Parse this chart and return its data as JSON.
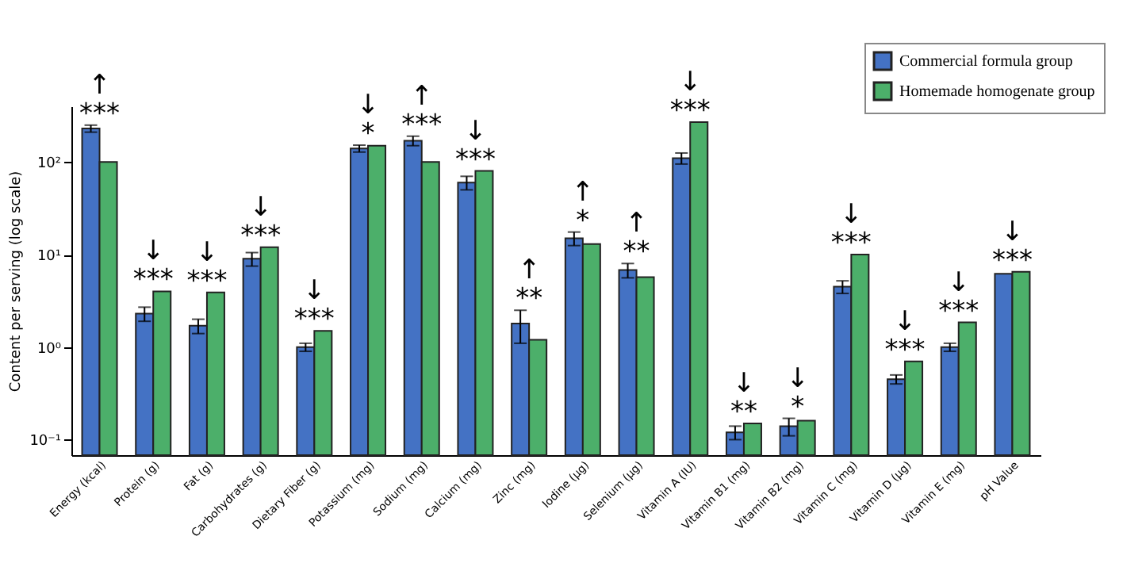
{
  "chart_data": {
    "type": "bar",
    "ylabel": "Content per serving (log scale)",
    "categories": [
      "Energy (kcal)",
      "Protein (g)",
      "Fat (g)",
      "Carbohydrates (g)",
      "Dietary Fiber (g)",
      "Potassium (mg)",
      "Sodium (mg)",
      "Calcium (mg)",
      "Zinc (mg)",
      "Iodine (μg)",
      "Selenium (μg)",
      "Vitamin A (IU)",
      "Vitamin B1 (mg)",
      "Vitamin B2 (mg)",
      "Vitamin C (mg)",
      "Vitamin D (μg)",
      "Vitamin E (mg)",
      "pH Value"
    ],
    "series": [
      {
        "name": "Commercial formula group",
        "color": "#4472c4",
        "values": [
          230,
          2.3,
          1.7,
          9,
          1.0,
          140,
          170,
          60,
          1.8,
          15,
          6.8,
          110,
          0.12,
          0.14,
          4.5,
          0.45,
          1.0,
          6.2
        ],
        "errors": [
          20,
          0.4,
          0.3,
          1.5,
          0.1,
          12,
          20,
          10,
          0.7,
          2.5,
          1.2,
          15,
          0.02,
          0.03,
          0.7,
          0.05,
          0.1,
          null
        ]
      },
      {
        "name": "Homemade homogenate group",
        "color": "#4caf6a",
        "values": [
          100,
          4.0,
          3.9,
          12,
          1.5,
          150,
          100,
          80,
          1.2,
          13,
          5.7,
          270,
          0.15,
          0.16,
          10,
          0.7,
          1.85,
          6.5
        ]
      }
    ],
    "log": "y",
    "ylim": [
      0.068,
      400
    ],
    "yticks": [
      {
        "value": 0.1,
        "label": "10⁻¹"
      },
      {
        "value": 1,
        "label": "10⁰"
      },
      {
        "value": 10,
        "label": "10¹"
      },
      {
        "value": 100,
        "label": "10²"
      }
    ],
    "legend": "top right",
    "grid": false,
    "annotations": [
      "↑\n***",
      "↓\n***",
      "↓\n***",
      "↓\n***",
      "↓\n***",
      "↓\n*",
      "↑\n***",
      "↓\n***",
      "↑\n**",
      "↑\n*",
      "↑\n**",
      "↓\n***",
      "↓\n**",
      "↓\n*",
      "↓\n***",
      "↓\n***",
      "↓\n***",
      "↓\n***"
    ]
  }
}
